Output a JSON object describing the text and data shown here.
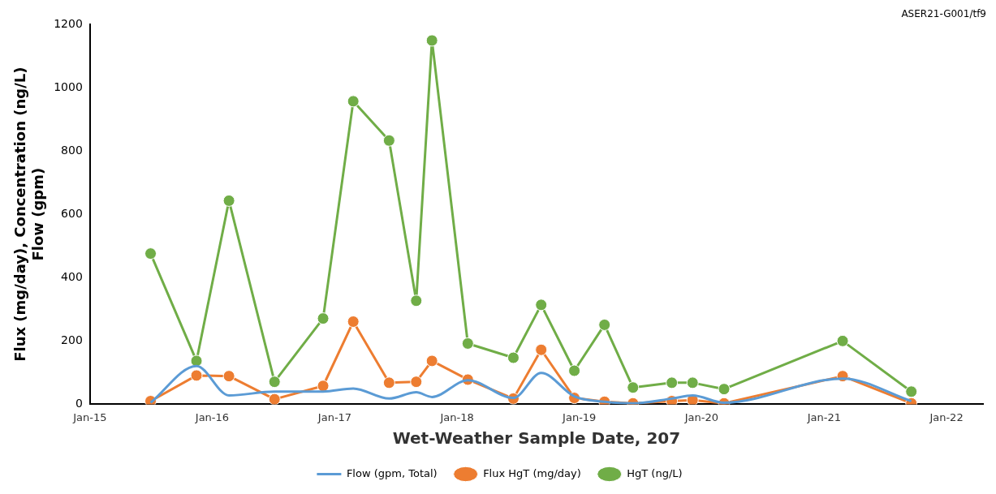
{
  "chart_data": {
    "type": "line",
    "xlabel": "Wet-Weather Sample Date, 207",
    "ylabel": "Flux (mg/day), Concentration (ng/L)\nFlow (gpm)",
    "annotations": [
      "ASER21-G001/tf9"
    ],
    "x": [
      "2015-07-01",
      "2015-11-15",
      "2016-02-20",
      "2016-07-05",
      "2016-11-27",
      "2017-02-25",
      "2017-06-12",
      "2017-09-01",
      "2017-10-18",
      "2018-02-02",
      "2018-06-18",
      "2018-09-09",
      "2018-12-17",
      "2019-03-17",
      "2019-06-10",
      "2019-10-04",
      "2019-12-05",
      "2020-03-08",
      "2021-02-25",
      "2021-09-18"
    ],
    "series": [
      {
        "name": "HgT (ng/L)",
        "color": "#70ad47",
        "marker": "circle",
        "values": [
          476,
          137,
          643,
          71,
          271,
          957,
          833,
          327,
          1149,
          192,
          147,
          314,
          106,
          251,
          53,
          68,
          68,
          48,
          200,
          40
        ]
      },
      {
        "name": "Flux HgT (mg/day)",
        "color": "#ed7d31",
        "marker": "circle",
        "values": [
          10,
          91,
          89,
          16,
          58,
          261,
          68,
          71,
          137,
          78,
          18,
          172,
          20,
          8,
          3,
          10,
          13,
          3,
          89,
          3
        ]
      },
      {
        "name": "Flow (gpm, Total)",
        "color": "#5b9bd5",
        "marker": "none",
        "values": [
          5,
          121,
          28,
          40,
          40,
          50,
          18,
          38,
          23,
          76,
          20,
          99,
          25,
          8,
          3,
          18,
          28,
          5,
          81,
          10
        ]
      }
    ],
    "xlim": [
      "2015-01-01",
      "2022-04-20"
    ],
    "xticks": [
      {
        "value": "2015-01-01",
        "label": "Jan-15"
      },
      {
        "value": "2016-01-01",
        "label": "Jan-16"
      },
      {
        "value": "2017-01-01",
        "label": "Jan-17"
      },
      {
        "value": "2018-01-01",
        "label": "Jan-18"
      },
      {
        "value": "2019-01-01",
        "label": "Jan-19"
      },
      {
        "value": "2020-01-01",
        "label": "Jan-20"
      },
      {
        "value": "2021-01-01",
        "label": "Jan-21"
      },
      {
        "value": "2022-01-01",
        "label": "Jan-22"
      }
    ],
    "ylim": [
      0,
      1200
    ],
    "yticks": [
      0,
      200,
      400,
      600,
      800,
      1000,
      1200
    ],
    "grid": false,
    "legend": "bottom"
  }
}
